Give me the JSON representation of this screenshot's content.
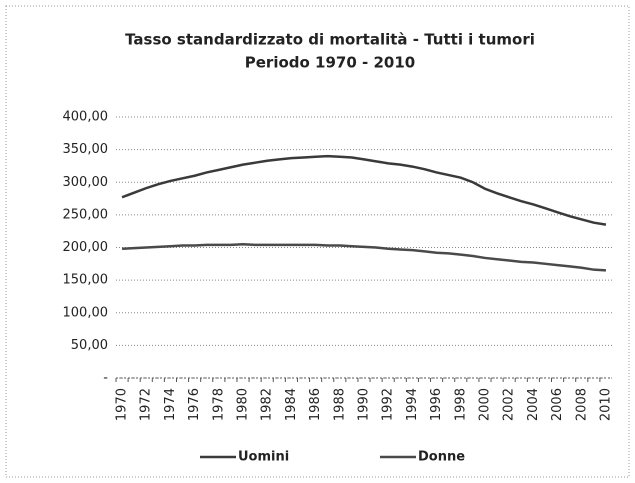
{
  "chart_data": {
    "type": "line",
    "title": "Tasso standardizzato di mortalità - Tutti i tumori",
    "subtitle": "Periodo 1970 - 2010",
    "categories": [
      "1970",
      null,
      "1972",
      null,
      "1974",
      null,
      "1976",
      null,
      "1978",
      null,
      "1980",
      null,
      "1982",
      null,
      "1984",
      null,
      "1986",
      null,
      "1988",
      null,
      "1990",
      null,
      "1992",
      null,
      "1994",
      null,
      "1996",
      null,
      "1998",
      null,
      "2000",
      null,
      "2002",
      null,
      "2004",
      null,
      "2006",
      null,
      "2008",
      null,
      "2010"
    ],
    "series": [
      {
        "name": "Uomini",
        "color": "#3a3a3a",
        "values": [
          277,
          284,
          291,
          297,
          302,
          306,
          310,
          315,
          319,
          323,
          327,
          330,
          333,
          335,
          337,
          338,
          339,
          340,
          339,
          338,
          335,
          332,
          329,
          327,
          324,
          320,
          315,
          311,
          307,
          300,
          290,
          283,
          277,
          271,
          266,
          260,
          254,
          248,
          243,
          238,
          235
        ]
      },
      {
        "name": "Donne",
        "color": "#4a4a4a",
        "values": [
          198,
          199,
          200,
          201,
          202,
          203,
          203,
          204,
          204,
          204,
          205,
          204,
          204,
          204,
          204,
          204,
          204,
          203,
          203,
          202,
          201,
          200,
          198,
          197,
          196,
          194,
          192,
          191,
          189,
          187,
          184,
          182,
          180,
          178,
          177,
          175,
          173,
          171,
          169,
          166,
          165
        ]
      }
    ],
    "ylim": [
      0,
      400
    ],
    "yticks": [
      {
        "value": 0,
        "label": "-"
      },
      {
        "value": 50,
        "label": "50,00"
      },
      {
        "value": 100,
        "label": "100,00"
      },
      {
        "value": 150,
        "label": "150,00"
      },
      {
        "value": 200,
        "label": "200,00"
      },
      {
        "value": 250,
        "label": "250,00"
      },
      {
        "value": 300,
        "label": "300,00"
      },
      {
        "value": 350,
        "label": "350,00"
      },
      {
        "value": 400,
        "label": "400,00"
      }
    ],
    "grid": true,
    "legend": "bottom"
  }
}
